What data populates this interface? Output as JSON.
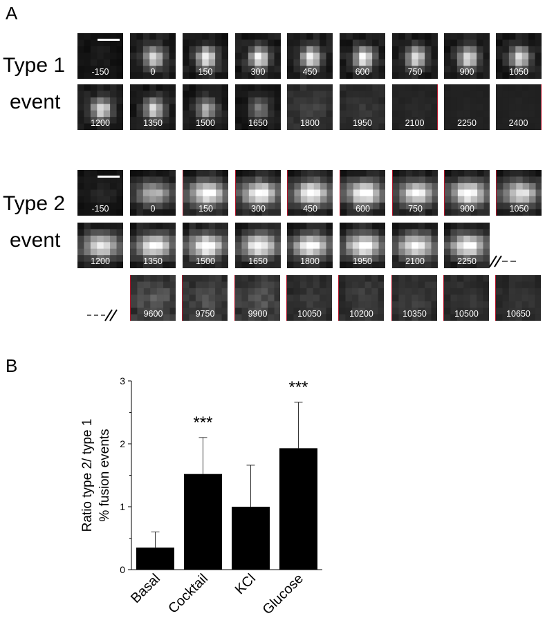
{
  "panel_a": {
    "letter": "A",
    "type1": {
      "label_line1": "Type 1",
      "label_line2": "event",
      "rows": [
        [
          "-150",
          "0",
          "150",
          "300",
          "450",
          "600",
          "750",
          "900",
          "1050"
        ],
        [
          "1200",
          "1350",
          "1500",
          "1650",
          "1800",
          "1950",
          "2100",
          "2250",
          "2400"
        ]
      ]
    },
    "type2": {
      "label_line1": "Type 2",
      "label_line2": "event",
      "rows": [
        [
          "-150",
          "0",
          "150",
          "300",
          "450",
          "600",
          "750",
          "900",
          "1050"
        ],
        [
          "1200",
          "1350",
          "1500",
          "1650",
          "1800",
          "1950",
          "2100",
          "2250"
        ],
        [
          "9600",
          "9750",
          "9900",
          "10050",
          "10200",
          "10350",
          "10500",
          "10650"
        ]
      ]
    }
  },
  "panel_b": {
    "letter": "B"
  },
  "chart_data": {
    "type": "bar",
    "categories": [
      "Basal",
      "Cocktail",
      "KCl",
      "Glucose"
    ],
    "values": [
      0.35,
      1.52,
      1.0,
      1.93
    ],
    "errors": [
      0.25,
      0.58,
      0.66,
      0.73
    ],
    "significance": [
      "",
      "***",
      "",
      "***"
    ],
    "ylabel_line1": "Ratio type 2/ type 1",
    "ylabel_line2": "% fusion events",
    "ylim": [
      0,
      3
    ],
    "yticks": [
      "0",
      "1",
      "2",
      "3"
    ],
    "bar_color": "#000000",
    "grid": false
  }
}
